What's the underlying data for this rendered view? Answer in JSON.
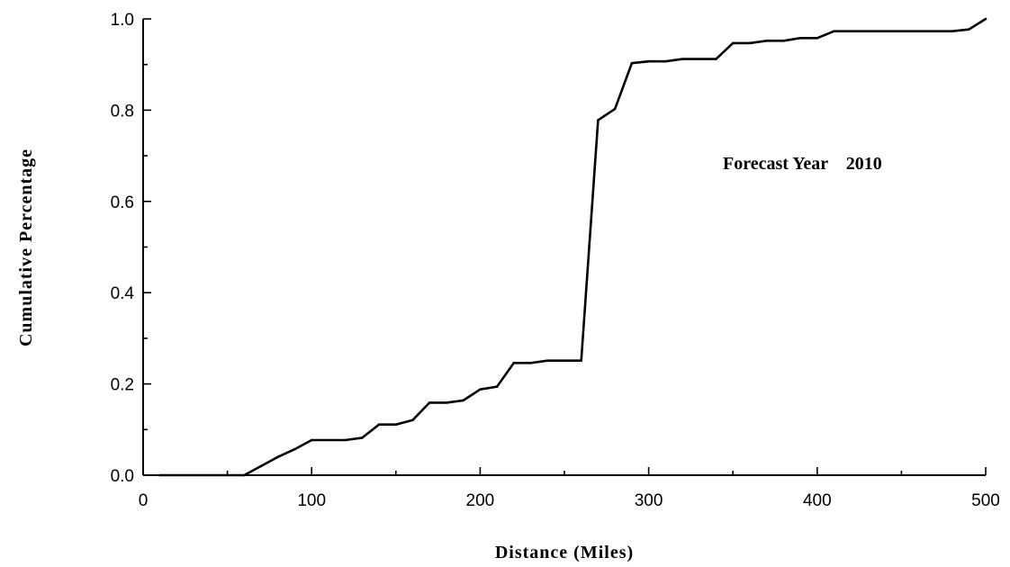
{
  "chart_data": {
    "type": "line",
    "title": "",
    "xlabel": "Distance (Miles)",
    "ylabel": "Cumulative Percentage",
    "xlim": [
      0,
      500
    ],
    "ylim": [
      0,
      1.0
    ],
    "x_ticks": [
      0,
      100,
      200,
      300,
      400,
      500
    ],
    "x_tick_labels": [
      "0",
      "100",
      "200",
      "300",
      "400",
      "500"
    ],
    "x_minor_ticks": [
      50,
      150,
      250,
      350,
      450
    ],
    "y_ticks": [
      0,
      0.2,
      0.4,
      0.6,
      0.8,
      1.0
    ],
    "y_tick_labels": [
      "0.0",
      "0.2",
      "0.4",
      "0.6",
      "0.8",
      "1.0"
    ],
    "y_minor_ticks": [
      0.1,
      0.3,
      0.5,
      0.7,
      0.9
    ],
    "grid": false,
    "legend": "none",
    "annotation": "Forecast Year    2010",
    "series": [
      {
        "color": "#000000",
        "points": [
          [
            10,
            0.0
          ],
          [
            60,
            0.0
          ],
          [
            70,
            0.02
          ],
          [
            80,
            0.04
          ],
          [
            90,
            0.057
          ],
          [
            100,
            0.077
          ],
          [
            120,
            0.077
          ],
          [
            130,
            0.082
          ],
          [
            140,
            0.111
          ],
          [
            150,
            0.111
          ],
          [
            160,
            0.121
          ],
          [
            170,
            0.159
          ],
          [
            180,
            0.159
          ],
          [
            190,
            0.164
          ],
          [
            200,
            0.188
          ],
          [
            210,
            0.194
          ],
          [
            220,
            0.246
          ],
          [
            230,
            0.246
          ],
          [
            240,
            0.251
          ],
          [
            250,
            0.251
          ],
          [
            260,
            0.251
          ],
          [
            270,
            0.778
          ],
          [
            280,
            0.803
          ],
          [
            290,
            0.903
          ],
          [
            300,
            0.907
          ],
          [
            310,
            0.907
          ],
          [
            320,
            0.912
          ],
          [
            340,
            0.912
          ],
          [
            350,
            0.947
          ],
          [
            360,
            0.947
          ],
          [
            370,
            0.952
          ],
          [
            380,
            0.952
          ],
          [
            390,
            0.958
          ],
          [
            400,
            0.958
          ],
          [
            410,
            0.973
          ],
          [
            480,
            0.973
          ],
          [
            490,
            0.977
          ],
          [
            500,
            1.0
          ]
        ]
      }
    ]
  }
}
